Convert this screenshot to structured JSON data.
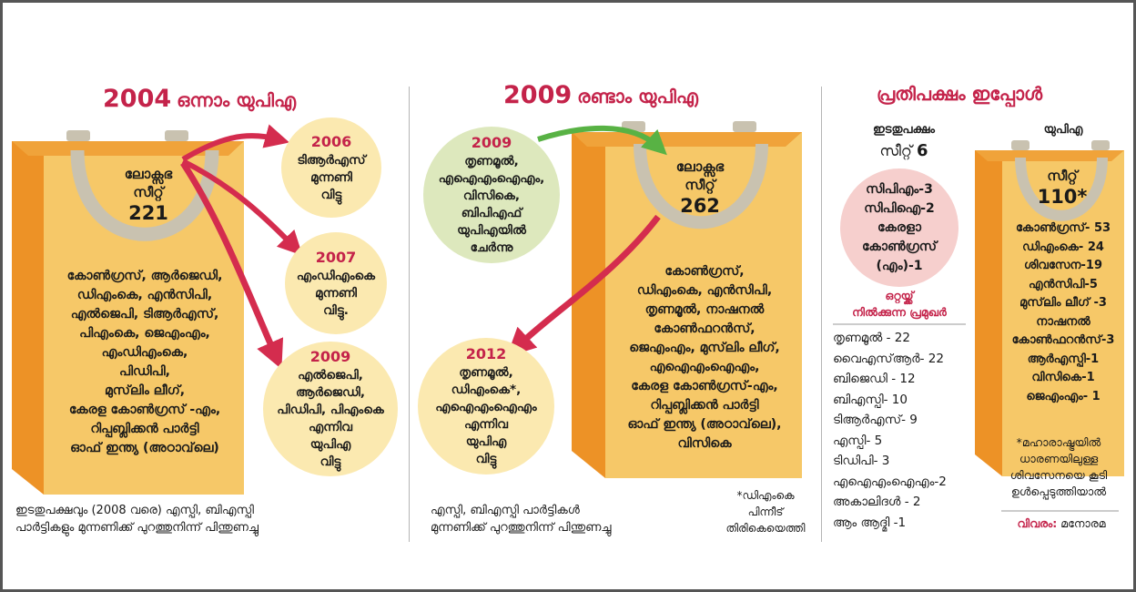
{
  "section_2004": {
    "year": "2004",
    "heading": "ഒന്നാം യുപിഎ",
    "seat_label_1": "ലോക്സഭ",
    "seat_label_2": "സീറ്റ്",
    "seats": "221",
    "parties": [
      "കോൺഗ്രസ്, ആർജെഡി,",
      "ഡിഎംകെ, എൻസിപി,",
      "എൽജെപി, ടിആർഎസ്,",
      "പിഎംകെ, ജെഎംഎം,",
      "എംഡിഎംകെ,",
      "പിഡിപി,",
      "മുസ്‌ലിം ലീഗ്,",
      "കേരള കോൺഗ്രസ് -എം,",
      "റിപ്പബ്ലിക്കൻ പാർട്ടി",
      "ഓഫ് ഇന്ത്യ (അഠാവ്‌ലെ)"
    ],
    "exits": [
      {
        "year": "2006",
        "lines": [
          "ടിആർഎസ്",
          "മുന്നണി",
          "വിട്ടു"
        ]
      },
      {
        "year": "2007",
        "lines": [
          "എംഡിഎംകെ",
          "മുന്നണി",
          "വിട്ടു."
        ]
      },
      {
        "year": "2009",
        "lines": [
          "എൽജെപി,",
          "ആർജെഡി,",
          "പിഡിപി, പിഎംകെ",
          "എന്നിവ",
          "യുപിഎ",
          "വിട്ടു"
        ]
      }
    ],
    "note": [
      "ഇടതുപക്ഷവും (2008 വരെ) എസ്പി, ബിഎസ്പി",
      "പാർട്ടികളും മുന്നണിക്ക് പുറത്തുനിന്ന് പിന്തുണച്ചു"
    ]
  },
  "section_2009": {
    "year": "2009",
    "heading": "രണ്ടാം യുപിഎ",
    "seat_label_1": "ലോക്സഭ",
    "seat_label_2": "സീറ്റ്",
    "seats": "262",
    "joined": {
      "year": "2009",
      "lines": [
        "തൃണമൂൽ,",
        "എഐഎംഐഎം,",
        "വിസികെ,",
        "ബിപിഎഫ്",
        "യുപിഎയിൽ",
        "ചേർന്നു"
      ]
    },
    "left": {
      "year": "2012",
      "lines": [
        "തൃണമൂൽ,",
        "ഡിഎംകെ*,",
        "എഐഎംഐഎം",
        "എന്നിവ",
        "യുപിഎ",
        "വിട്ടു"
      ]
    },
    "parties": [
      "കോൺഗ്രസ്,",
      "ഡിഎംകെ, എൻസിപി,",
      "തൃണമൂൽ, നാഷനൽ",
      "കോൺഫറൻസ്,",
      "ജെഎംഎം, മുസ്‌ലിം ലീഗ്,",
      "എഐഎംഐഎം,",
      "കേരള കോൺഗ്രസ്-എം,",
      "റിപ്പബ്ലിക്കൻ പാർട്ടി",
      "ഓഫ് ഇന്ത്യ (അഠാവ്‌ലെ),",
      "വിസികെ"
    ],
    "note": [
      "എസ്പി, ബിഎസ്പി പാർട്ടികൾ",
      "മുന്നണിക്ക് പുറത്തുനിന്ന് പിന്തുണച്ചു"
    ],
    "footnote": [
      "*ഡിഎംകെ",
      "പിന്നീട്",
      "തിരികെയെത്തി"
    ]
  },
  "section_now": {
    "heading": "പ്രതിപക്ഷം ഇപ്പോൾ",
    "left_label": "ഇടതുപക്ഷം",
    "left_seat_label": "സീറ്റ്",
    "left_seats": "6",
    "left_parties": [
      "സിപിഎം-3",
      "സിപിഐ-2",
      "കേരളാ",
      "കോൺഗ്രസ്",
      "(എം)-1"
    ],
    "solo_heading_1": "ഒറ്റയ്ക്ക്",
    "solo_heading_2": "നിൽക്കുന്ന പ്രമുഖർ",
    "solo_parties": [
      "തൃണമൂൽ - 22",
      "വൈഎസ്ആർ- 22",
      "ബിജെഡി - 12",
      "ബിഎസ്പി- 10",
      "ടിആർഎസ്- 9",
      "എസ്പി- 5",
      "ടിഡിപി- 3",
      "എഐഎംഐഎം-2",
      "അകാലിദൾ - 2",
      "ആം ആദ്മി -1"
    ],
    "upa_label": "യുപിഎ",
    "upa_seat_label": "സീറ്റ്",
    "upa_seats": "110*",
    "upa_parties": [
      "കോൺഗ്രസ്- 53",
      "ഡിഎംകെ- 24",
      "ശിവസേന-19",
      "എൻസിപി-5",
      "മുസ്‌ലിം ലീഗ് -3",
      "നാഷനൽ",
      "കോൺഫറൻസ്-3",
      "ആർഎസ്പി-1",
      "വിസികെ-1",
      "ജെഎംഎം- 1"
    ],
    "footnote": [
      "*മഹാരാഷ്ട്രയിൽ",
      "ധാരണയിലുള്ള",
      "ശിവസേനയെ കൂടി",
      "ഉൾപ്പെടുത്തിയാൽ"
    ],
    "credit_label": "വിവരം:",
    "credit_source": "മനോരമ"
  },
  "colors": {
    "accent": "#c4234a",
    "bag_front": "#f6c868",
    "bag_side": "#ed9226",
    "handle": "#c9c2b0",
    "yellow": "#fbe9b0",
    "green": "#dde8bd",
    "pink": "#f6cfcd"
  }
}
